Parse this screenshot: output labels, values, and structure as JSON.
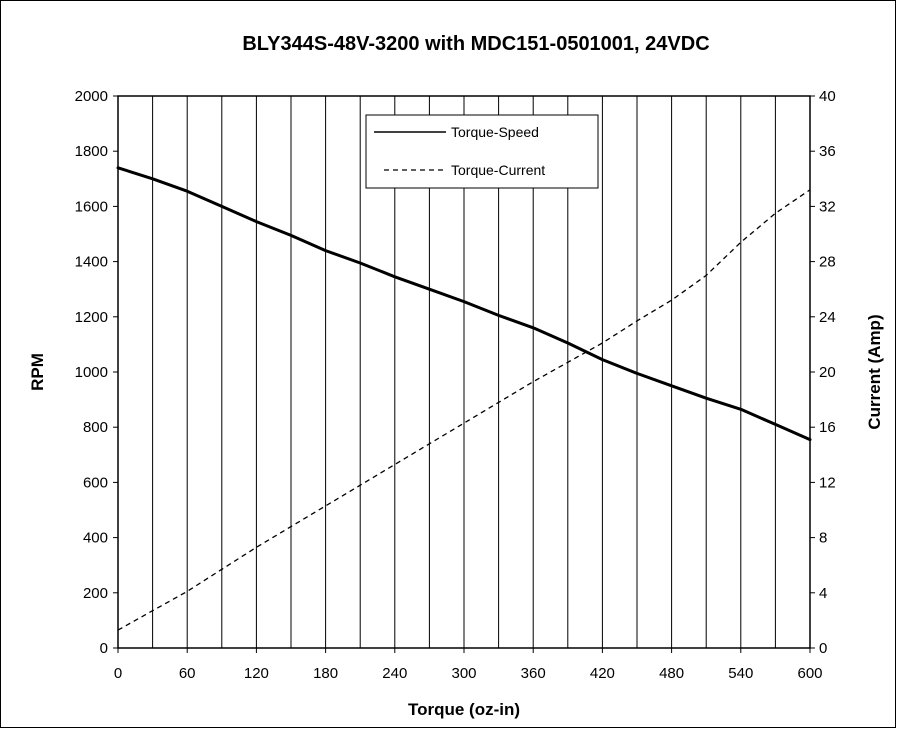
{
  "chart_data": {
    "type": "line",
    "title": "BLY344S-48V-3200  with MDC151-0501001,  24VDC",
    "xlabel": "Torque (oz-in)",
    "ylabel": "RPM",
    "y2label": "Current (Amp)",
    "xlim": [
      0,
      600
    ],
    "ylim": [
      0,
      2000
    ],
    "y2lim": [
      0,
      40
    ],
    "xticks": [
      "0",
      "60",
      "120",
      "180",
      "240",
      "300",
      "360",
      "420",
      "480",
      "540",
      "600"
    ],
    "yticks": [
      "0",
      "200",
      "400",
      "600",
      "800",
      "1000",
      "1200",
      "1400",
      "1600",
      "1800",
      "2000"
    ],
    "y2ticks": [
      "0",
      "4",
      "8",
      "12",
      "16",
      "20",
      "24",
      "28",
      "32",
      "36",
      "40"
    ],
    "grid": "vertical-every-30",
    "legend_position": "top-center",
    "series": [
      {
        "name": "Torque-Speed",
        "axis": "left",
        "style": "solid",
        "x": [
          0,
          30,
          60,
          90,
          120,
          150,
          180,
          210,
          240,
          270,
          300,
          330,
          360,
          390,
          420,
          450,
          480,
          510,
          540,
          570,
          600
        ],
        "y": [
          1740,
          1700,
          1655,
          1600,
          1545,
          1495,
          1440,
          1395,
          1345,
          1300,
          1255,
          1205,
          1160,
          1105,
          1045,
          995,
          950,
          905,
          865,
          810,
          755
        ]
      },
      {
        "name": "Torque-Current",
        "axis": "right",
        "style": "dashed",
        "x": [
          0,
          30,
          60,
          90,
          120,
          150,
          180,
          210,
          240,
          270,
          300,
          330,
          360,
          390,
          420,
          450,
          480,
          510,
          540,
          570,
          600
        ],
        "y": [
          1.3,
          2.7,
          4.1,
          5.7,
          7.3,
          8.8,
          10.3,
          11.8,
          13.3,
          14.8,
          16.3,
          17.8,
          19.3,
          20.7,
          22.1,
          23.7,
          25.2,
          27.0,
          29.4,
          31.5,
          33.2
        ]
      }
    ]
  }
}
